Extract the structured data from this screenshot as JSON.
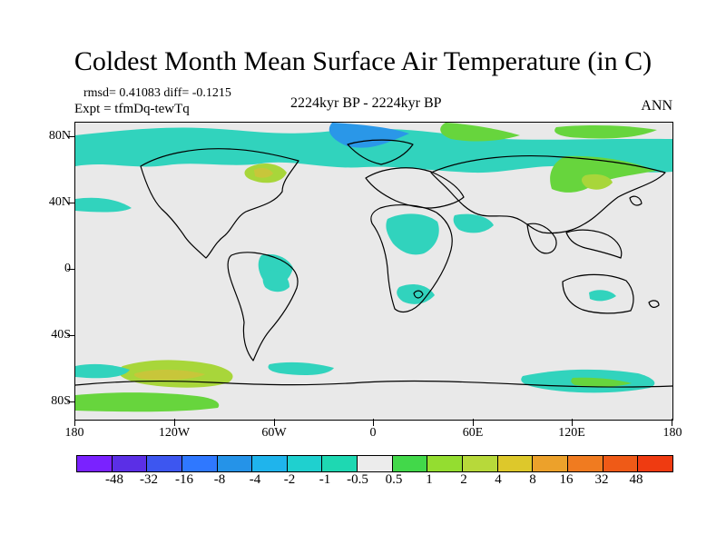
{
  "figure": {
    "title": "Coldest Month Mean Surface Air Temperature (in C)",
    "rmsd_text": "rmsd= 0.41083 diff= -0.1215",
    "expt_text": "Expt = tfmDq-tewTq",
    "period_text": "2224kyr BP - 2224kyr BP",
    "season_text": "ANN"
  },
  "map": {
    "latitude_labels": [
      "80N",
      "40N",
      "0",
      "40S",
      "80S"
    ],
    "longitude_labels": [
      "180",
      "120W",
      "60W",
      "0",
      "60E",
      "120E",
      "180"
    ],
    "background_color": "#e9e9e9",
    "coastline_color": "#000000"
  },
  "legend": {
    "labels": [
      "-48",
      "-32",
      "-16",
      "-8",
      "-4",
      "-2",
      "-1",
      "-0.5",
      "0.5",
      "1",
      "2",
      "4",
      "8",
      "16",
      "32",
      "48"
    ],
    "colors": [
      "#7a22ff",
      "#5b2fe6",
      "#3d56f0",
      "#2f78ff",
      "#2593e8",
      "#1fb4ec",
      "#1fd0cf",
      "#1ed8b2",
      "#ececec",
      "#42d84a",
      "#94dd30",
      "#b7d93a",
      "#ddc82b",
      "#eca12b",
      "#f07b20",
      "#ef5a17",
      "#ef3b11"
    ]
  },
  "anomaly_palette": {
    "cyan": "#31d3bd",
    "blue": "#2a97e8",
    "green": "#67d53d",
    "lime": "#a8d63a",
    "yellow": "#c8c63a"
  }
}
